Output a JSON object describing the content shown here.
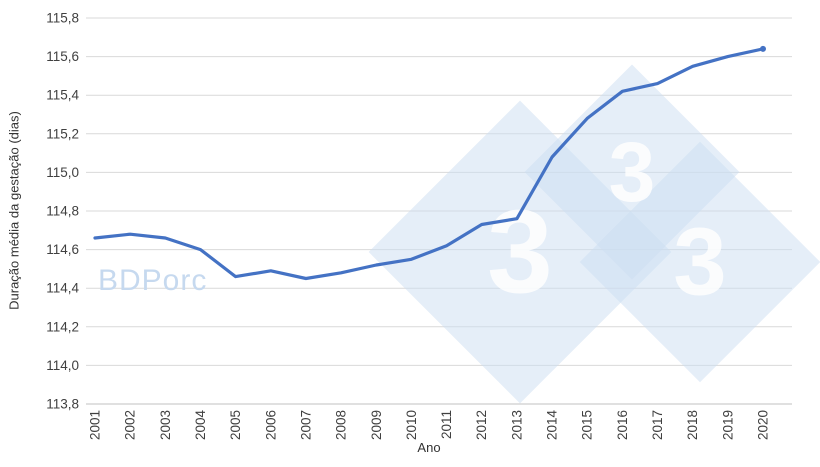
{
  "chart_data": {
    "type": "line",
    "title": "",
    "xlabel": "Ano",
    "ylabel": "Duração média da gestação (dias)",
    "x": [
      2001,
      2002,
      2003,
      2004,
      2005,
      2006,
      2007,
      2008,
      2009,
      2010,
      2011,
      2012,
      2013,
      2014,
      2015,
      2016,
      2017,
      2018,
      2019,
      2020
    ],
    "series": [
      {
        "name": "Duração média da gestação (dias)",
        "values": [
          114.66,
          114.68,
          114.66,
          114.6,
          114.46,
          114.49,
          114.45,
          114.48,
          114.52,
          114.55,
          114.62,
          114.73,
          114.76,
          115.08,
          115.28,
          115.42,
          115.46,
          115.55,
          115.6,
          115.64
        ]
      }
    ],
    "ylim": [
      113.8,
      115.8
    ],
    "ytick_step": 0.2,
    "decimal_separator": ",",
    "grid": true,
    "legend": "none",
    "line_color": "#4472C4",
    "gridline_color": "#d9d9d9"
  },
  "watermark": {
    "brand_text": "BDPorc",
    "diamond_glyph": "3"
  }
}
